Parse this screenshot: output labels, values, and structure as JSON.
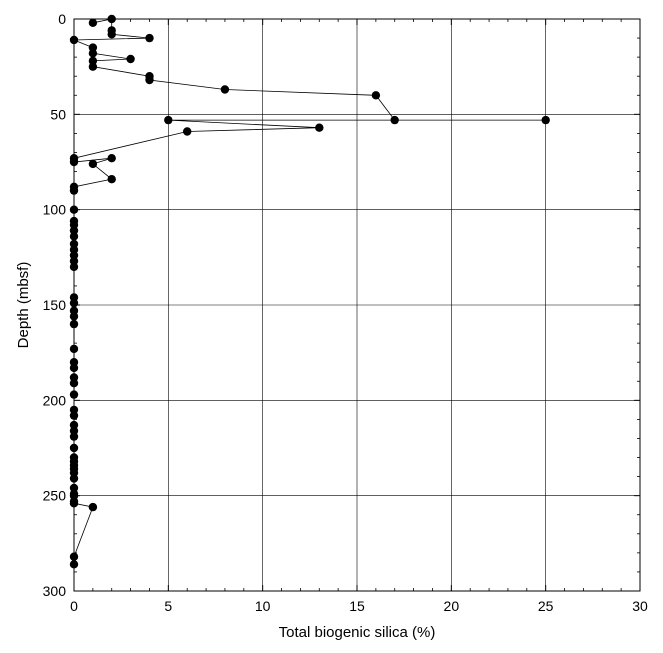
{
  "chart_data": {
    "type": "scatter",
    "xlabel": "Total biogenic silica (%)",
    "ylabel": "Depth (mbsf)",
    "xlim": [
      0,
      30
    ],
    "ylim": [
      0,
      300
    ],
    "y_inverted": true,
    "x_ticks": [
      "0",
      "5",
      "10",
      "15",
      "20",
      "25",
      "30"
    ],
    "y_ticks": [
      "0",
      "50",
      "100",
      "150",
      "200",
      "250",
      "300"
    ],
    "grid": true,
    "connected_line": true,
    "marker": "filled-circle",
    "series": [
      {
        "x": [
          1,
          2,
          2,
          2,
          4,
          0,
          1,
          1,
          3,
          1,
          1,
          4,
          4,
          8,
          16,
          17,
          25,
          5,
          13,
          6,
          0,
          0,
          2,
          1,
          2,
          0,
          0,
          0,
          0,
          0,
          0,
          0,
          0,
          0,
          0,
          0,
          0,
          0,
          0,
          0,
          0,
          0,
          0,
          0,
          0,
          0,
          0,
          0,
          0,
          0,
          0,
          0,
          0,
          0,
          0,
          0,
          0,
          0,
          0,
          0,
          0,
          0,
          0,
          0,
          0,
          1,
          0,
          0
        ],
        "y": [
          2,
          0,
          6,
          8,
          10,
          11,
          15,
          18,
          21,
          22,
          25,
          30,
          32,
          37,
          40,
          53,
          53,
          53,
          57,
          59,
          73,
          75,
          73,
          76,
          84,
          88,
          90,
          100,
          106,
          108,
          111,
          114,
          118,
          121,
          124,
          127,
          130,
          146,
          149,
          153,
          156,
          160,
          173,
          180,
          183,
          188,
          191,
          197,
          205,
          208,
          213,
          216,
          219,
          225,
          230,
          232,
          234,
          236,
          238,
          241,
          246,
          249,
          250,
          253,
          254,
          256,
          282,
          286
        ]
      }
    ]
  }
}
